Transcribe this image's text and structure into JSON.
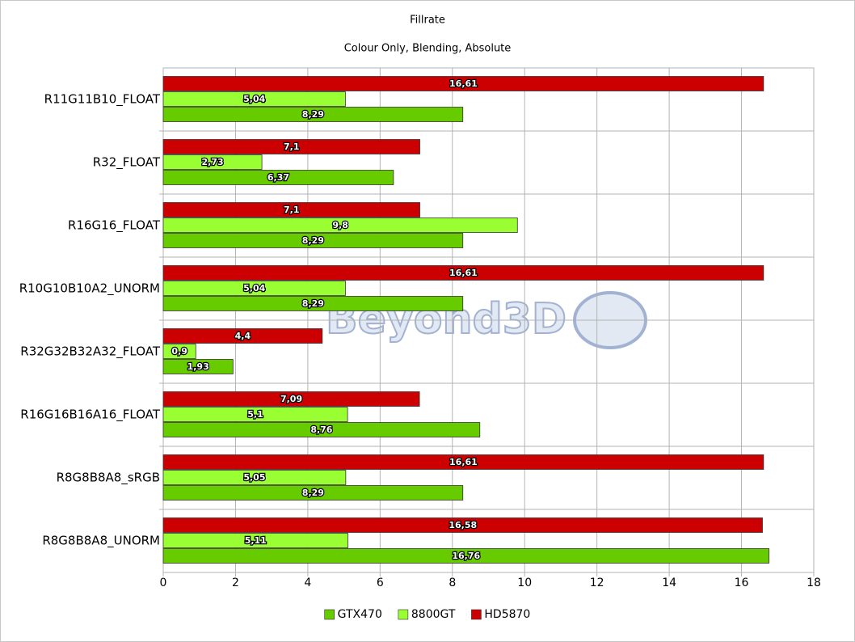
{
  "chart_data": {
    "type": "barh",
    "title": "Fillrate",
    "subtitle": "Colour Only, Blending, Absolute",
    "watermark": "Beyond3D",
    "categories": [
      "R11G11B10_FLOAT",
      "R32_FLOAT",
      "R16G16_FLOAT",
      "R10G10B10A2_UNORM",
      "R32G32B32A32_FLOAT",
      "R16G16B16A16_FLOAT",
      "R8G8B8A8_sRGB",
      "R8G8B8A8_UNORM"
    ],
    "series": [
      {
        "name": "GTX470",
        "color": "#66cc00",
        "values": [
          8.29,
          6.37,
          8.29,
          8.29,
          1.93,
          8.76,
          8.29,
          16.76
        ],
        "value_labels": [
          "8,29",
          "6,37",
          "8,29",
          "8,29",
          "1,93",
          "8,76",
          "8,29",
          "16,76"
        ]
      },
      {
        "name": "8800GT",
        "color": "#99ff33",
        "values": [
          5.04,
          2.73,
          9.8,
          5.04,
          0.9,
          5.1,
          5.05,
          5.11
        ],
        "value_labels": [
          "5,04",
          "2,73",
          "9,8",
          "5,04",
          "0,9",
          "5,1",
          "5,05",
          "5,11"
        ]
      },
      {
        "name": "HD5870",
        "color": "#cc0000",
        "values": [
          16.61,
          7.1,
          7.1,
          16.61,
          4.4,
          7.09,
          16.61,
          16.58
        ],
        "value_labels": [
          "16,61",
          "7,1",
          "7,1",
          "16,61",
          "4,4",
          "7,09",
          "16,61",
          "16,58"
        ]
      }
    ],
    "xlim": [
      0,
      18
    ],
    "xticks": [
      0,
      2,
      4,
      6,
      8,
      10,
      12,
      14,
      16,
      18
    ],
    "grid": true,
    "legend": "bottom"
  }
}
